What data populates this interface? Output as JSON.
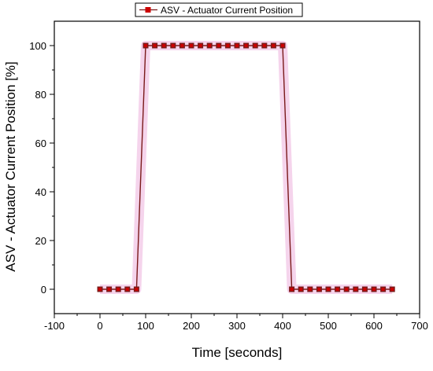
{
  "chart_data": {
    "type": "line",
    "title": "",
    "xlabel": "Time [seconds]",
    "ylabel": "ASV - Actuator Current Position [%]",
    "xlim": [
      -100,
      700
    ],
    "ylim": [
      -10,
      110
    ],
    "xticks": [
      -100,
      0,
      100,
      200,
      300,
      400,
      500,
      600,
      700
    ],
    "yticks": [
      0,
      20,
      40,
      60,
      80,
      100
    ],
    "grid": false,
    "legend_position": "top-center",
    "series": [
      {
        "name": "ASV - Actuator Current Position",
        "color": "#cc0000",
        "line_color": "#7a1a1a",
        "marker": "square",
        "x": [
          0,
          20,
          40,
          60,
          80,
          100,
          120,
          140,
          160,
          180,
          200,
          220,
          240,
          260,
          280,
          300,
          320,
          340,
          360,
          380,
          400,
          420,
          440,
          460,
          480,
          500,
          520,
          540,
          560,
          580,
          600,
          620,
          640
        ],
        "y": [
          0,
          0,
          0,
          0,
          0,
          100,
          100,
          100,
          100,
          100,
          100,
          100,
          100,
          100,
          100,
          100,
          100,
          100,
          100,
          100,
          100,
          0,
          0,
          0,
          0,
          0,
          0,
          0,
          0,
          0,
          0,
          0,
          0
        ]
      }
    ]
  }
}
